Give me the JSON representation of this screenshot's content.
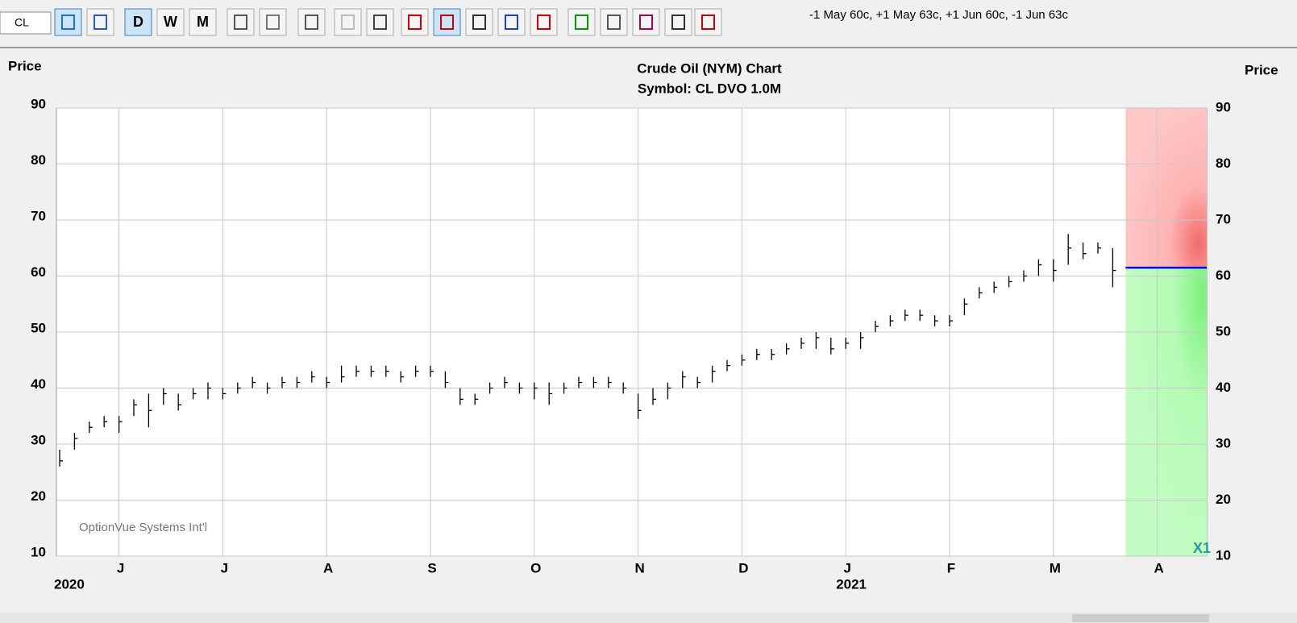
{
  "toolbar": {
    "symbol": "CL",
    "buttons": [
      "D",
      "W",
      "M"
    ],
    "position": "-1 May 60c, +1 May 63c, +1 Jun 60c, -1 Jun 63c"
  },
  "chart_data": {
    "type": "hlc",
    "title": "Crude Oil (NYM) Chart",
    "subtitle": "Symbol: CL  DVO 1.0M",
    "ylabel": "Price",
    "y2label": "Price",
    "watermark": "OptionVue Systems Int'l",
    "corner_label": "X1",
    "years": [
      "2020",
      "2021"
    ],
    "categories": [
      null,
      null,
      null,
      null,
      "J",
      null,
      null,
      null,
      null,
      null,
      null,
      "J",
      null,
      null,
      null,
      null,
      null,
      null,
      "A",
      null,
      null,
      null,
      null,
      null,
      null,
      "S",
      null,
      null,
      null,
      null,
      null,
      null,
      "O",
      null,
      null,
      null,
      null,
      null,
      null,
      "N",
      null,
      null,
      null,
      null,
      null,
      null,
      "D",
      null,
      null,
      null,
      null,
      null,
      null,
      "J",
      null,
      null,
      null,
      null,
      null,
      null,
      "F",
      null,
      null,
      null,
      null,
      null,
      null,
      "M",
      null,
      null,
      null,
      null,
      null,
      null,
      "A",
      null,
      null,
      null
    ],
    "high": [
      29,
      32,
      34,
      35,
      35,
      38,
      39,
      40,
      39,
      40,
      41,
      40,
      41,
      42,
      41,
      42,
      42,
      43,
      42,
      44,
      44,
      44,
      44,
      43,
      44,
      44,
      43,
      40,
      39,
      41,
      42,
      41,
      41,
      41,
      41,
      42,
      42,
      42,
      41,
      39,
      40,
      41,
      43,
      42,
      44,
      45,
      46,
      47,
      47,
      48,
      49,
      50,
      49,
      49,
      50,
      52,
      53,
      54,
      54,
      53,
      53,
      56,
      58,
      59,
      60,
      61,
      63,
      63,
      67.5,
      66,
      66,
      65,
      null,
      null,
      null,
      null,
      null,
      null
    ],
    "low": [
      26,
      29,
      32,
      33,
      32,
      35,
      33,
      37,
      36,
      38,
      38,
      38,
      39,
      40,
      39,
      40,
      40,
      41,
      40,
      41,
      42,
      42,
      42,
      41,
      42,
      42,
      40,
      37,
      37,
      39,
      40,
      39,
      38,
      37,
      39,
      40,
      40,
      40,
      39,
      34.5,
      37,
      38,
      40,
      40,
      41,
      43,
      44,
      45,
      45,
      46,
      47,
      47,
      46,
      47,
      47,
      50,
      51,
      52,
      52,
      51,
      51,
      53,
      56,
      57,
      58,
      59,
      60,
      59,
      62,
      63,
      64,
      58,
      null,
      null,
      null,
      null,
      null,
      null
    ],
    "close": [
      27,
      31,
      33,
      34,
      34,
      37,
      36,
      39,
      37,
      39,
      40,
      39,
      40,
      41,
      40,
      41,
      41,
      42,
      41,
      42,
      43,
      43,
      43,
      42,
      43,
      43,
      41,
      38,
      38,
      40,
      41,
      40,
      40,
      39,
      40,
      41,
      41,
      41,
      40,
      36,
      38,
      40,
      42,
      41,
      43,
      44,
      45,
      46,
      46,
      47,
      48,
      49,
      47,
      48,
      49,
      51,
      52,
      53,
      53,
      52,
      52,
      55,
      57,
      58,
      59,
      60,
      62,
      61,
      65,
      64,
      65,
      61,
      null,
      null,
      null,
      null,
      null,
      null
    ],
    "color": "#000000",
    "last_price": 61.5,
    "last_price_color": "#0000ff",
    "ylim": [
      10,
      90
    ],
    "yticks": [
      10,
      20,
      30,
      40,
      50,
      60,
      70,
      80,
      90
    ],
    "y2lim": [
      10,
      90
    ],
    "y2ticks": [
      10,
      20,
      30,
      40,
      50,
      60,
      70,
      80,
      90
    ],
    "grid": true
  }
}
